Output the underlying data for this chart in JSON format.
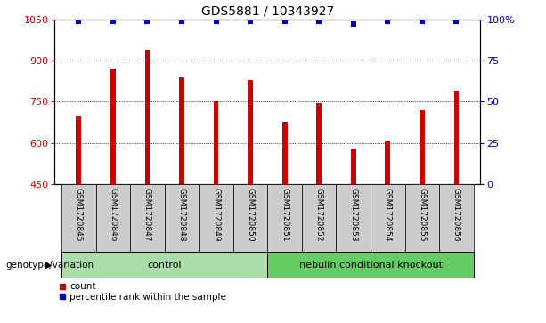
{
  "title": "GDS5881 / 10343927",
  "samples": [
    "GSM1720845",
    "GSM1720846",
    "GSM1720847",
    "GSM1720848",
    "GSM1720849",
    "GSM1720850",
    "GSM1720851",
    "GSM1720852",
    "GSM1720853",
    "GSM1720854",
    "GSM1720855",
    "GSM1720856"
  ],
  "counts": [
    700,
    870,
    940,
    840,
    755,
    830,
    678,
    745,
    578,
    610,
    720,
    790
  ],
  "percentiles": [
    99,
    99,
    99,
    99,
    99,
    99,
    99,
    99,
    97,
    99,
    99,
    99
  ],
  "ylim_left": [
    450,
    1050
  ],
  "ylim_right": [
    0,
    100
  ],
  "yticks_left": [
    450,
    600,
    750,
    900,
    1050
  ],
  "yticks_right": [
    0,
    25,
    50,
    75,
    100
  ],
  "bar_color": "#cc0000",
  "dot_color": "#0000bb",
  "group1_label": "control",
  "group2_label": "nebulin conditional knockout",
  "group1_color": "#aaddaa",
  "group2_color": "#66cc66",
  "group1_indices": [
    0,
    1,
    2,
    3,
    4,
    5
  ],
  "group2_indices": [
    6,
    7,
    8,
    9,
    10,
    11
  ],
  "xlabel_left": "genotype/variation",
  "tick_bg_color": "#cccccc",
  "legend_count_label": "count",
  "legend_pct_label": "percentile rank within the sample",
  "title_fontsize": 10,
  "tick_fontsize": 7,
  "bar_width": 0.15
}
